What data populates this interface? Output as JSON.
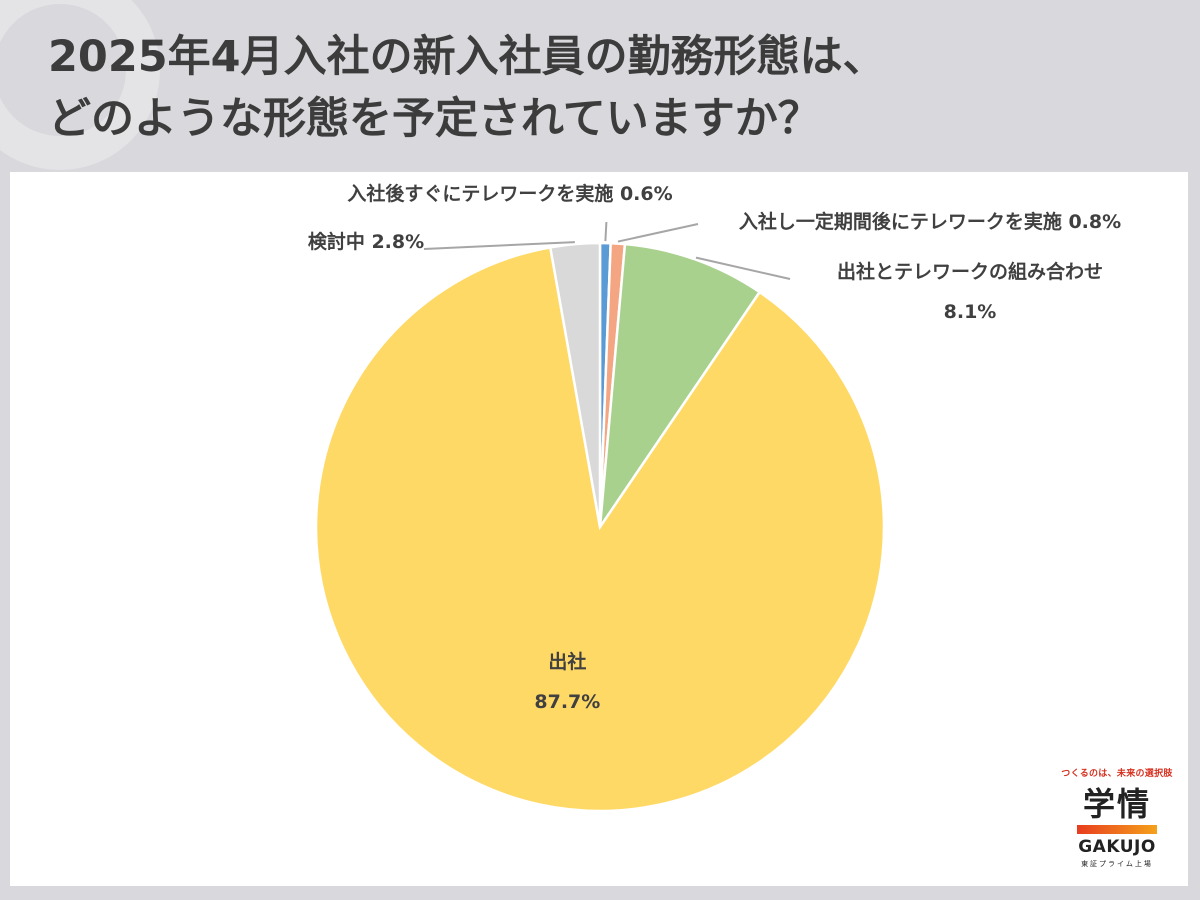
{
  "title": {
    "line1": "2025年4月入社の新入社員の勤務形態は、",
    "line2": "どのような形態を予定されていますか？"
  },
  "chart_data": {
    "type": "pie",
    "title": "2025年4月入社の新入社員の勤務形態は、どのような形態を予定されていますか？",
    "start_angle_deg": 0,
    "direction": "clockwise",
    "slices": [
      {
        "label": "入社後すぐにテレワークを実施",
        "value": 0.6,
        "value_label": "0.6%",
        "color": "#5b9bd5"
      },
      {
        "label": "入社し一定期間後にテレワークを実施",
        "value": 0.8,
        "value_label": "0.8%",
        "color": "#f4a582"
      },
      {
        "label": "出社とテレワークの組み合わせ",
        "value": 8.1,
        "value_label": "8.1%",
        "color": "#a9d18e"
      },
      {
        "label": "出社",
        "value": 87.7,
        "value_label": "87.7%",
        "color": "#ffd966"
      },
      {
        "label": "検討中",
        "value": 2.8,
        "value_label": "2.8%",
        "color": "#d9d9d9"
      }
    ]
  },
  "logo": {
    "tagline": "つくるのは、未来の選択肢",
    "mark": "学情",
    "name_en": "GAKUJO",
    "sub": "東証プライム上場"
  }
}
